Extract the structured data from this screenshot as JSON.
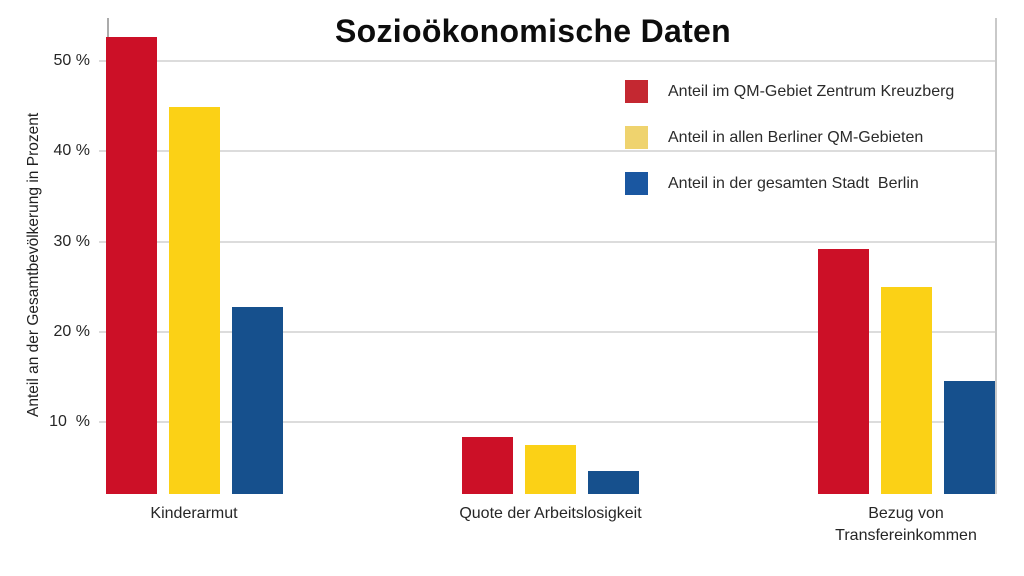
{
  "title": "Sozioökonomische Daten",
  "y_axis": {
    "title": "Anteil an der Gesamtbevölkerung in Prozent",
    "tick_labels": [
      "50 %",
      "40 %",
      "30 %",
      "20 %",
      "10  %"
    ]
  },
  "legend": {
    "items": [
      {
        "label": "Anteil im QM-Gebiet Zentrum Kreuzberg",
        "color": "#c42831"
      },
      {
        "label": "Anteil in allen Berliner QM-Gebieten",
        "color": "#efd36e"
      },
      {
        "label": "Anteil in der gesamten Stadt  Berlin",
        "color": "#1a57a1"
      }
    ]
  },
  "chart_data": {
    "type": "bar",
    "title": "Sozioökonomische Daten",
    "xlabel": "",
    "ylabel": "Anteil an der Gesamtbevölkerung in Prozent",
    "categories": [
      "Kinderarmut",
      "Quote der Arbeitslosigkeit",
      "Bezug von\nTransfereinkommen"
    ],
    "series": [
      {
        "name": "Anteil im QM-Gebiet Zentrum Kreuzberg",
        "color": "#cc1027",
        "values": [
          52.7,
          8.4,
          29.2
        ]
      },
      {
        "name": "Anteil in allen Berliner QM-Gebieten",
        "color": "#fbd116",
        "values": [
          44.9,
          7.5,
          25.0
        ]
      },
      {
        "name": "Anteil in der gesamten Stadt  Berlin",
        "color": "#16508d",
        "values": [
          22.8,
          4.6,
          14.6
        ]
      }
    ],
    "yticks": [
      50,
      40,
      30,
      20,
      10
    ],
    "ylim": [
      0,
      55
    ],
    "ylim_visible": [
      2.05,
      54.79
    ],
    "grid": true,
    "legend_position": "top-right",
    "gridline_color": "#dcdcdc",
    "background_color": "#ffffff"
  }
}
